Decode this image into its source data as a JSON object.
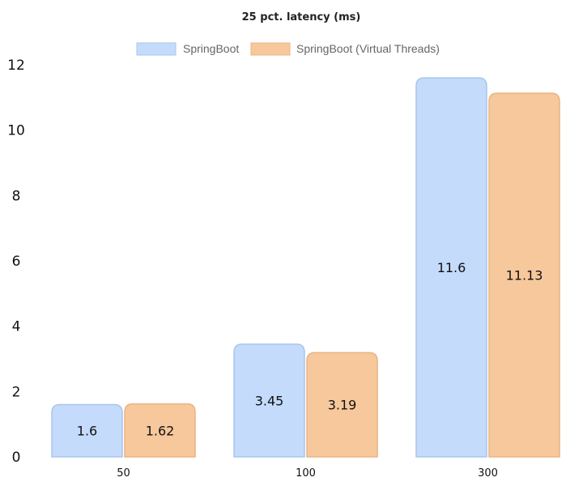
{
  "chart_data": {
    "type": "bar",
    "title": "25 pct. latency (ms)",
    "xlabel": "",
    "ylabel": "",
    "categories": [
      "50",
      "100",
      "300"
    ],
    "series": [
      {
        "name": "SpringBoot",
        "values": [
          1.6,
          3.45,
          11.6
        ],
        "color": "#c4dbfb",
        "border": "#a9c6ec"
      },
      {
        "name": "SpringBoot (Virtual Threads)",
        "values": [
          1.62,
          3.19,
          11.13
        ],
        "color": "#f7c89b",
        "border": "#e8b484"
      }
    ],
    "ylim": [
      0,
      12
    ],
    "yticks": [
      "0",
      "2",
      "4",
      "6",
      "8",
      "10",
      "12"
    ],
    "grid": false,
    "legend": "top-center",
    "data_labels": true
  }
}
